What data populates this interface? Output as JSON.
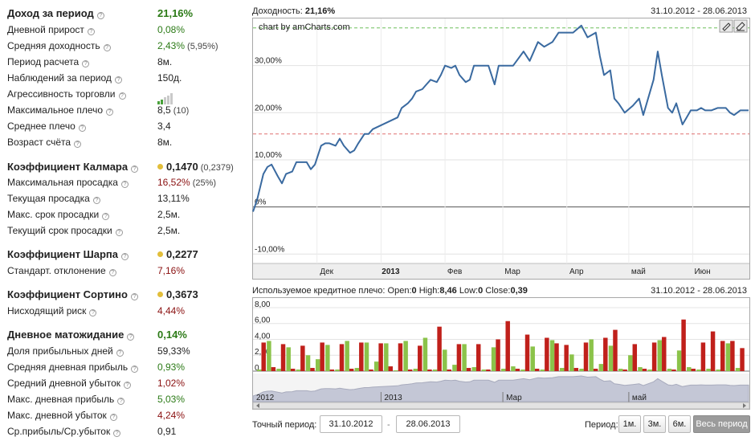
{
  "stats": {
    "income": {
      "label": "Доход за период",
      "value": "21,16%"
    },
    "daily_growth": {
      "label": "Дневной прирост",
      "value": "0,08%"
    },
    "avg_return": {
      "label": "Средняя доходность",
      "value": "2,43%",
      "extra": "(5,95%)"
    },
    "calc_period": {
      "label": "Период расчета",
      "value": "8м."
    },
    "observations": {
      "label": "Наблюдений за период",
      "value": "150д."
    },
    "aggressiveness": {
      "label": "Агрессивность торговли",
      "level": 2,
      "of": 5
    },
    "max_leverage": {
      "label": "Максимальное плечо",
      "value": "8,5",
      "extra": "(10)"
    },
    "avg_leverage": {
      "label": "Среднее плечо",
      "value": "3,4"
    },
    "account_age": {
      "label": "Возраст счёта",
      "value": "8м."
    },
    "calmar": {
      "label": "Коэффициент Калмара",
      "value": "0,1470",
      "extra": "(0,2379)"
    },
    "max_drawdown": {
      "label": "Максимальная просадка",
      "value": "16,52%",
      "extra": "(25%)"
    },
    "cur_drawdown": {
      "label": "Текущая просадка",
      "value": "13,11%"
    },
    "max_dd_term": {
      "label": "Макс. срок просадки",
      "value": "2,5м."
    },
    "cur_dd_term": {
      "label": "Текущий срок просадки",
      "value": "2,5м."
    },
    "sharpe": {
      "label": "Коэффициент Шарпа",
      "value": "0,2277"
    },
    "std_dev": {
      "label": "Стандарт. отклонение",
      "value": "7,16%"
    },
    "sortino": {
      "label": "Коэффициент Сортино",
      "value": "0,3673"
    },
    "downside_risk": {
      "label": "Нисходящий риск",
      "value": "4,44%"
    },
    "daily_expectation": {
      "label": "Дневное матожидание",
      "value": "0,14%"
    },
    "profit_days": {
      "label": "Доля прибыльных дней",
      "value": "59,33%"
    },
    "avg_daily_profit": {
      "label": "Средняя дневная прибыль",
      "value": "0,93%"
    },
    "avg_daily_loss": {
      "label": "Средний дневной убыток",
      "value": "1,02%"
    },
    "max_daily_profit": {
      "label": "Макс. дневная прибыль",
      "value": "5,03%"
    },
    "max_daily_loss": {
      "label": "Макс. дневной убыток",
      "value": "4,24%"
    },
    "profit_loss_ratio": {
      "label": "Ср.прибыль/Ср.убыток",
      "value": "0,91"
    }
  },
  "return_chart": {
    "title_label": "Доходность:",
    "title_value": "21,16%",
    "date_range": "31.10.2012 - 28.06.2013",
    "credit": "chart by amCharts.com",
    "chart_data": {
      "type": "line",
      "y_ticks": [
        "30,00%",
        "20,00%",
        "10,00%",
        "0%",
        "-10,00%"
      ],
      "x_ticks": [
        "Дек",
        "2013",
        "Фев",
        "Мар",
        "Апр",
        "май",
        "Июн"
      ],
      "ylim": [
        -12,
        40
      ],
      "guides": [
        {
          "y": 38,
          "color": "#6fbf5c"
        },
        {
          "y": 15.5,
          "color": "#e07070"
        }
      ],
      "series": [
        {
          "x": [
            "2012-10-31",
            "2012-11-02",
            "2012-11-05",
            "2012-11-07",
            "2012-11-09",
            "2012-11-12",
            "2012-11-14",
            "2012-11-16",
            "2012-11-19",
            "2012-11-21",
            "2012-11-23",
            "2012-11-26",
            "2012-11-28",
            "2012-11-30",
            "2012-12-03",
            "2012-12-05",
            "2012-12-07",
            "2012-12-10",
            "2012-12-12",
            "2012-12-14",
            "2012-12-17",
            "2012-12-19",
            "2012-12-21",
            "2012-12-24",
            "2012-12-26",
            "2012-12-28",
            "2013-01-09",
            "2013-01-11",
            "2013-01-14",
            "2013-01-16",
            "2013-01-18",
            "2013-01-21",
            "2013-01-23",
            "2013-01-25",
            "2013-01-28",
            "2013-01-30",
            "2013-02-01",
            "2013-02-04",
            "2013-02-06",
            "2013-02-08",
            "2013-02-11",
            "2013-02-13",
            "2013-02-15",
            "2013-02-18",
            "2013-02-20",
            "2013-02-22",
            "2013-02-25",
            "2013-02-27",
            "2013-03-01",
            "2013-03-06",
            "2013-03-11",
            "2013-03-14",
            "2013-03-18",
            "2013-03-21",
            "2013-03-25",
            "2013-03-28",
            "2013-04-01",
            "2013-04-04",
            "2013-04-08",
            "2013-04-11",
            "2013-04-15",
            "2013-04-17",
            "2013-04-19",
            "2013-04-22",
            "2013-04-24",
            "2013-04-26",
            "2013-04-29",
            "2013-05-03",
            "2013-05-06",
            "2013-05-08",
            "2013-05-13",
            "2013-05-15",
            "2013-05-17",
            "2013-05-20",
            "2013-05-22",
            "2013-05-24",
            "2013-05-27",
            "2013-05-29",
            "2013-05-31",
            "2013-06-03",
            "2013-06-05",
            "2013-06-07",
            "2013-06-10",
            "2013-06-13",
            "2013-06-17",
            "2013-06-19",
            "2013-06-21",
            "2013-06-24",
            "2013-06-26",
            "2013-06-28"
          ],
          "y": [
            -1,
            1.5,
            7,
            8.5,
            9,
            6.5,
            5,
            7,
            7.5,
            9.5,
            9.5,
            9.5,
            8,
            9,
            13,
            13.5,
            13.5,
            13,
            14.5,
            13,
            11.5,
            12,
            13.5,
            15.5,
            15.5,
            16.5,
            19,
            21,
            22,
            23,
            24.5,
            25,
            26,
            27,
            26.5,
            28,
            30,
            29.5,
            30,
            28,
            26.5,
            27,
            30,
            30,
            30,
            30,
            26,
            30,
            30,
            30,
            33,
            31,
            35,
            34,
            35,
            37,
            37,
            37,
            38.5,
            36,
            37,
            32,
            28,
            29,
            23,
            22,
            20,
            21.5,
            23,
            19.5,
            27,
            33,
            28,
            21,
            20,
            22,
            17.5,
            19,
            20.5,
            20.5,
            21,
            20.5,
            20.5,
            21,
            21,
            20,
            19.5,
            20.5,
            20.5,
            20.5
          ]
        }
      ]
    }
  },
  "leverage_chart": {
    "title": "Используемое кредитное плечо:",
    "open_label": "Open:",
    "open_value": "0",
    "high_label": "High:",
    "high_value": "8,46",
    "low_label": "Low:",
    "low_value": "0",
    "close_label": "Close:",
    "close_value": "0,39",
    "date_range": "31.10.2012 - 28.06.2013",
    "chart_data": {
      "type": "bar",
      "y_ticks": [
        "8,00",
        "6,00",
        "4,00",
        "2,00",
        "0"
      ],
      "ylim": [
        0,
        8.5
      ],
      "series": [
        {
          "color": "#8bc34a",
          "values": [
            0.2,
            3.8,
            0.3,
            3.0,
            0.2,
            2.0,
            1.5,
            3.3,
            0.2,
            3.8,
            0.4,
            3.6,
            1.2,
            3.5,
            0.1,
            3.8,
            0.3,
            4.2,
            0.2,
            2.7,
            0.8,
            3.4,
            0.5,
            0.2,
            3.0,
            0.3,
            0.6,
            0.2,
            3.1,
            0.2,
            3.9,
            0.4,
            2.1,
            0.3,
            4.0,
            0.9,
            3.2,
            0.3,
            2.0,
            0.5,
            0.2,
            3.9,
            0.3,
            2.6,
            0.5,
            0.2,
            0.3,
            0.2,
            3.5,
            0.4
          ]
        },
        {
          "color": "#c0201b",
          "values": [
            3.6,
            0.5,
            3.4,
            0.3,
            3.2,
            0.4,
            3.6,
            0.2,
            3.4,
            0.3,
            3.6,
            0.2,
            3.5,
            0.6,
            3.5,
            0.2,
            3.2,
            0.2,
            5.6,
            0.2,
            3.4,
            0.4,
            3.4,
            0.2,
            4.0,
            6.3,
            0.3,
            4.6,
            0.3,
            4.2,
            3.5,
            3.3,
            0.4,
            3.6,
            0.3,
            4.2,
            5.2,
            0.2,
            3.4,
            0.3,
            3.6,
            4.3,
            0.2,
            6.5,
            0.3,
            3.6,
            5.0,
            3.8,
            3.8,
            2.9
          ]
        }
      ],
      "navigator": {
        "labels": [
          "2012",
          "2013",
          "Мар",
          "май"
        ]
      }
    }
  },
  "period_controls": {
    "exact_label": "Точный период:",
    "from": "31.10.2012",
    "dash": "-",
    "to": "28.06.2013",
    "period_label": "Период:",
    "buttons": [
      "1м.",
      "3м.",
      "6м.",
      "Весь период"
    ],
    "active": "Весь период"
  }
}
